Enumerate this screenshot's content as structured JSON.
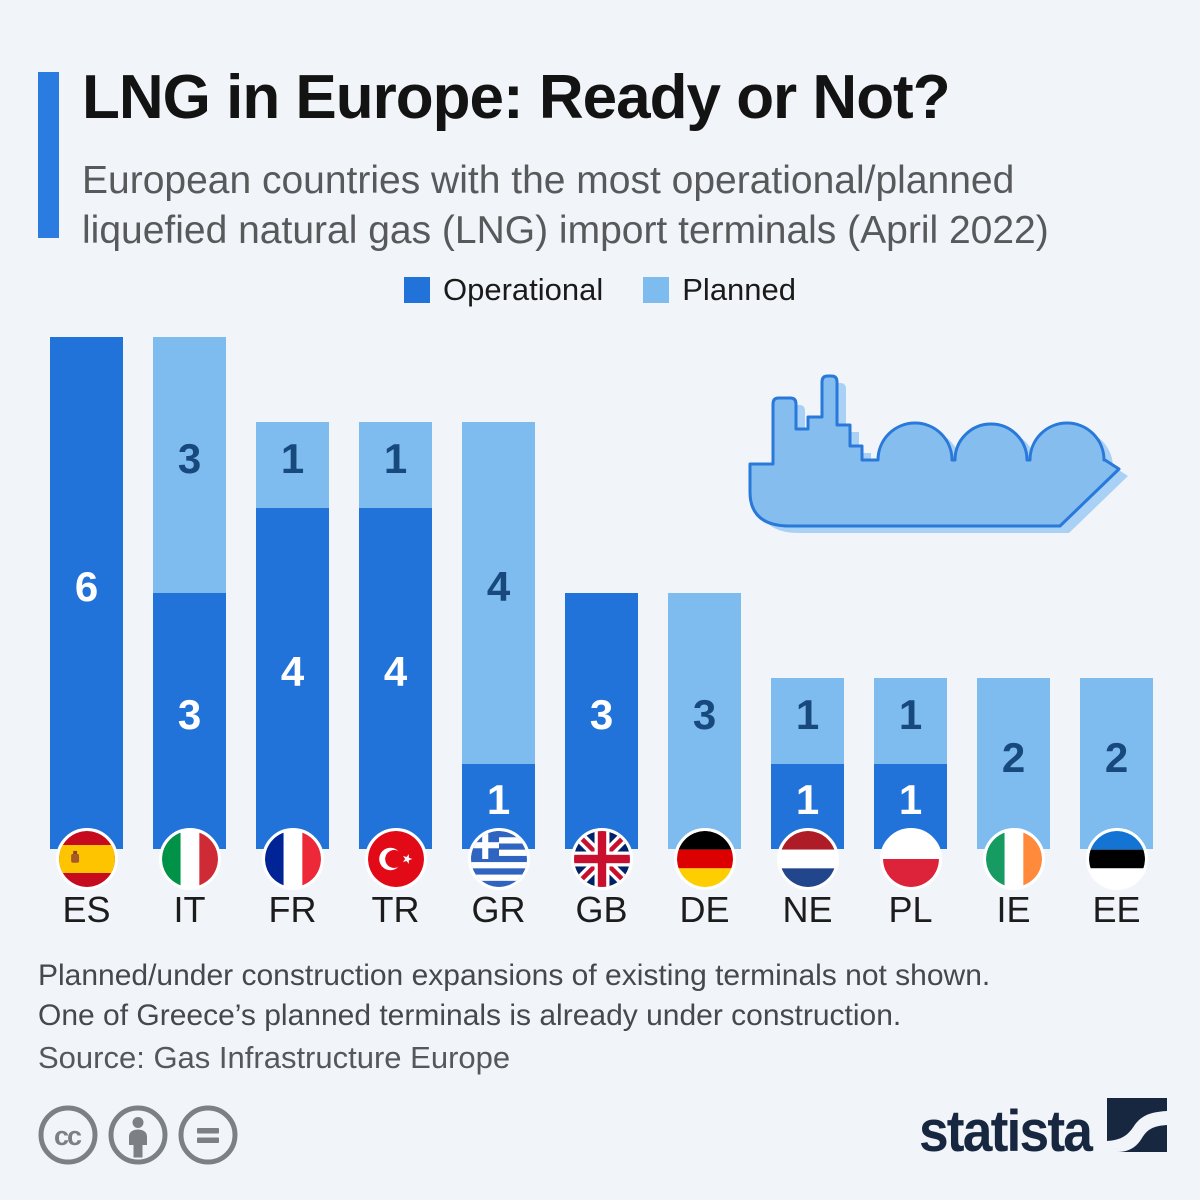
{
  "title": "LNG in Europe: Ready or Not?",
  "subtitle": {
    "line1": "European countries with the most operational/planned",
    "line2": "liquefied natural gas (LNG) import terminals (April 2022)"
  },
  "legend": {
    "operational": "Operational",
    "planned": "Planned"
  },
  "chart_data": {
    "type": "bar",
    "stacked": true,
    "categories": [
      "ES",
      "IT",
      "FR",
      "TR",
      "GR",
      "GB",
      "DE",
      "NE",
      "PL",
      "IE",
      "EE"
    ],
    "series": [
      {
        "name": "Operational",
        "color": "#2273d9",
        "values": [
          6,
          3,
          4,
          4,
          1,
          3,
          0,
          1,
          1,
          0,
          0
        ]
      },
      {
        "name": "Planned",
        "color": "#7ebbef",
        "values": [
          0,
          3,
          1,
          1,
          4,
          0,
          3,
          1,
          1,
          2,
          2
        ]
      }
    ],
    "totals": [
      6,
      6,
      5,
      5,
      5,
      3,
      3,
      2,
      2,
      2,
      2
    ],
    "ylim": [
      0,
      6
    ],
    "value_labels": true,
    "legend_position": "top",
    "grid": false
  },
  "footnote": {
    "line1": "Planned/under construction expansions of existing terminals not shown.",
    "line2": "One of Greece’s planned terminals is already under construction."
  },
  "source": "Source: Gas Infrastructure Europe",
  "branding": {
    "wordmark": "statista"
  },
  "license": {
    "icons": [
      "cc",
      "attribution-person",
      "no-derivatives-equals"
    ]
  },
  "colors": {
    "background": "#f1f5f9",
    "operational": "#2273d9",
    "planned": "#7ebbef",
    "accent": "#2b7ce0",
    "label_on_dark": "#ffffff",
    "label_on_light": "#17497d",
    "title": "#131313",
    "subtitle": "#57595b",
    "footnote": "#45494b",
    "source": "#55585a",
    "country_label": "#1c1c1c",
    "statista_navy": "#17273f",
    "license_gray": "#7b8084",
    "ship_fill": "#85bdee",
    "ship_shadow": "#a9d1f5",
    "ship_outline": "#2979da"
  }
}
